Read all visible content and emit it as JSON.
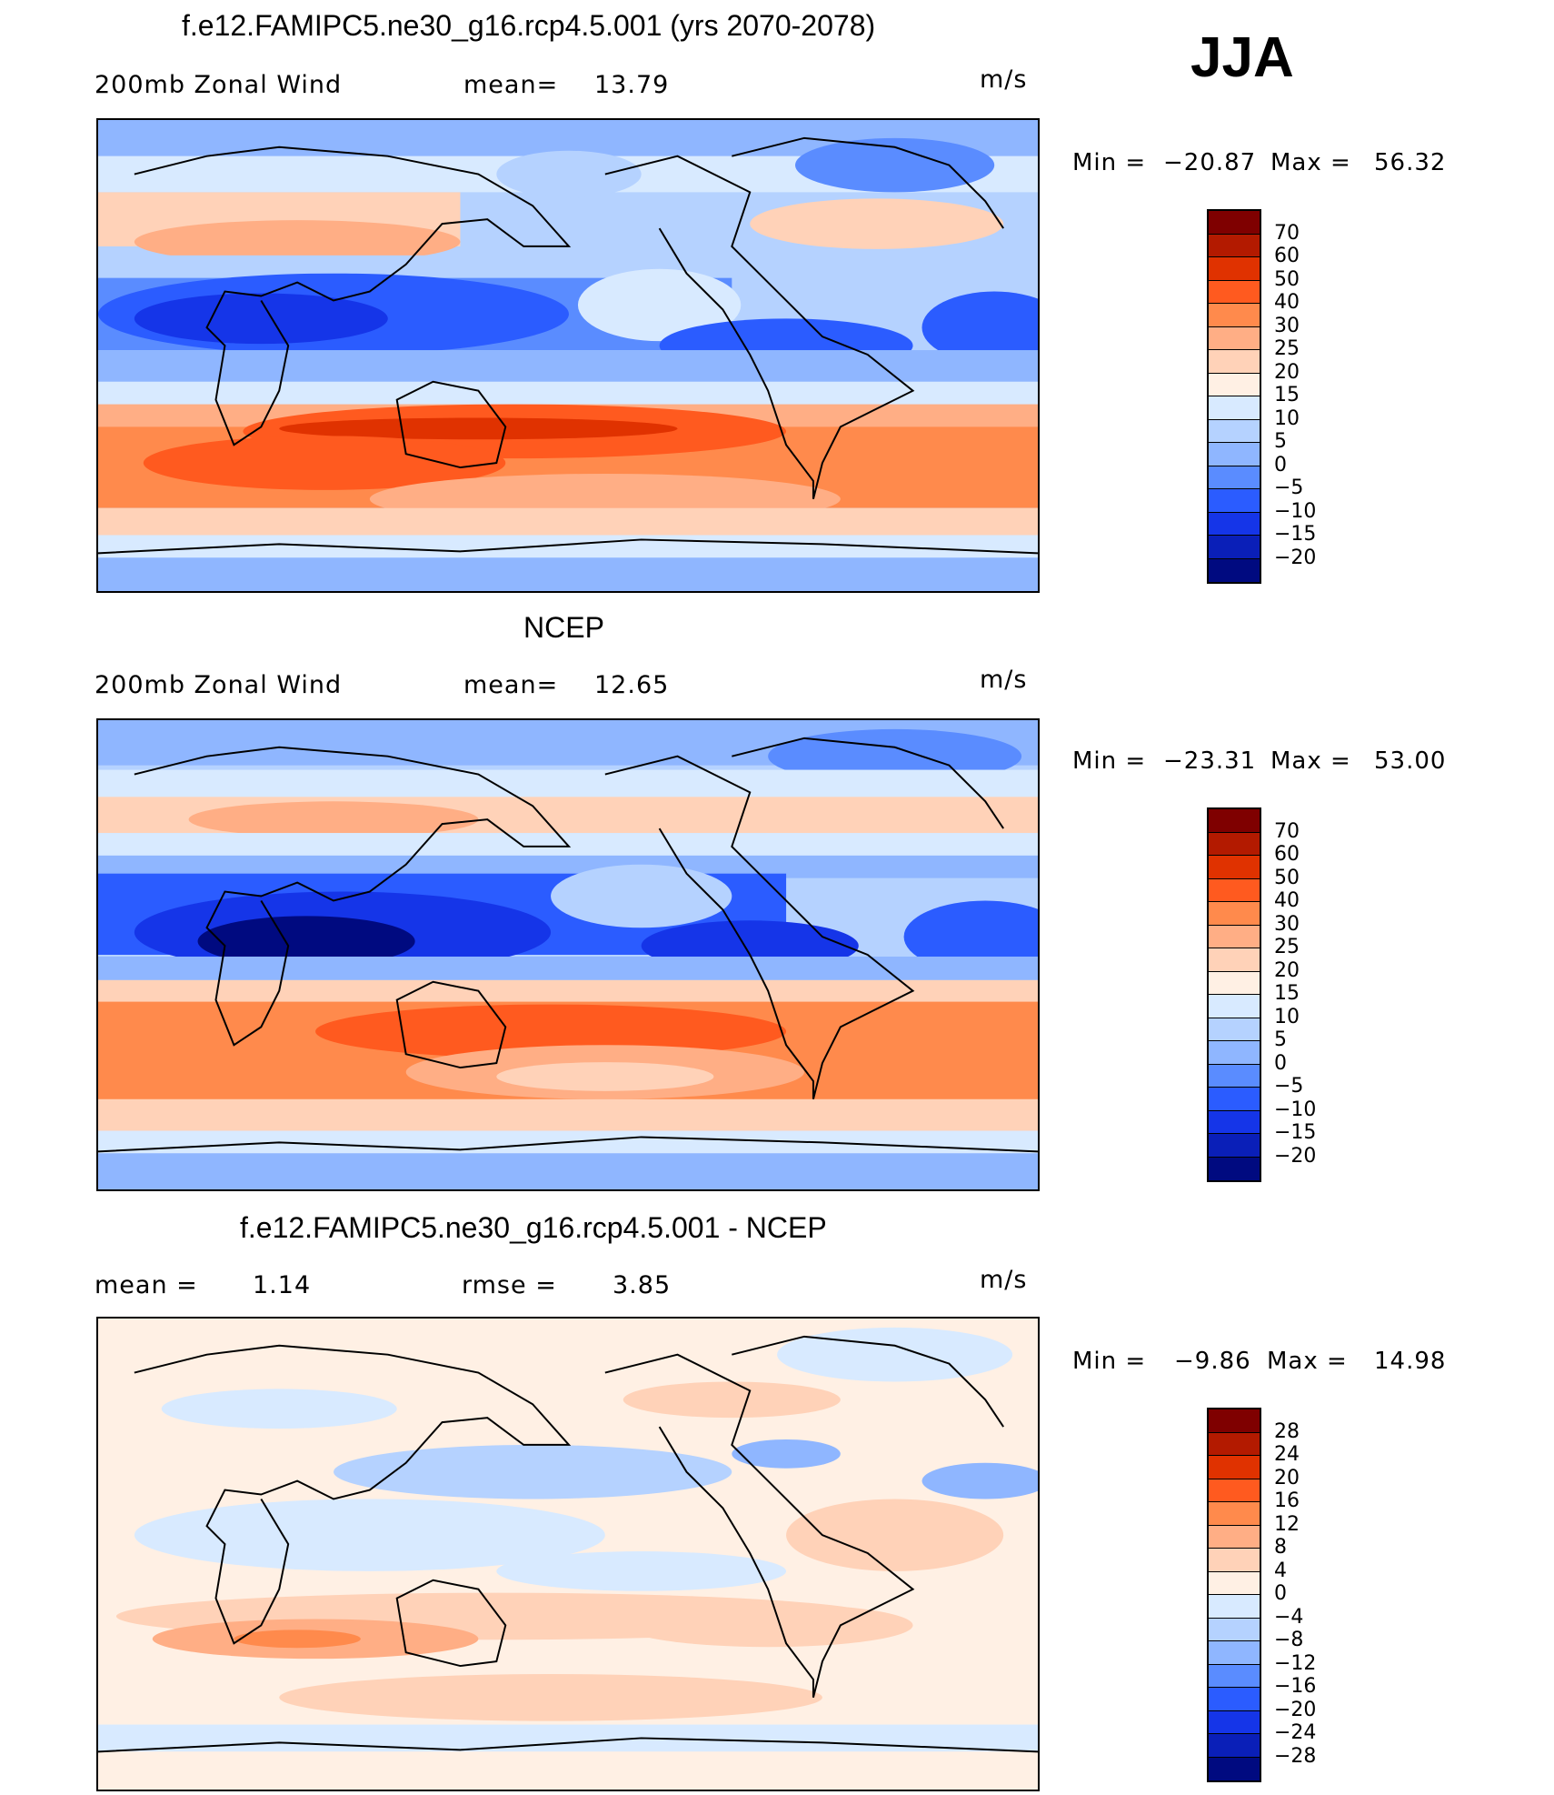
{
  "season": "JJA",
  "panels": [
    {
      "title": "f.e12.FAMIPC5.ne30_g16.rcp4.5.001 (yrs 2070-2078)",
      "left_label": "200mb Zonal Wind",
      "stat1_label": "mean=",
      "stat1_value": "13.79",
      "units": "m/s",
      "min_label": "Min =",
      "min_value": "−20.87",
      "max_label": "Max =",
      "max_value": "56.32",
      "colorbar_labels": [
        "70",
        "60",
        "50",
        "40",
        "30",
        "25",
        "20",
        "15",
        "10",
        "5",
        "0",
        "−5",
        "−10",
        "−15",
        "−20"
      ]
    },
    {
      "title": "NCEP",
      "left_label": "200mb Zonal Wind",
      "stat1_label": "mean=",
      "stat1_value": "12.65",
      "units": "m/s",
      "min_label": "Min =",
      "min_value": "−23.31",
      "max_label": "Max =",
      "max_value": "53.00",
      "colorbar_labels": [
        "70",
        "60",
        "50",
        "40",
        "30",
        "25",
        "20",
        "15",
        "10",
        "5",
        "0",
        "−5",
        "−10",
        "−15",
        "−20"
      ]
    },
    {
      "title": "f.e12.FAMIPC5.ne30_g16.rcp4.5.001 - NCEP",
      "left_label": "mean =",
      "left_value": "1.14",
      "stat1_label": "rmse =",
      "stat1_value": "3.85",
      "units": "m/s",
      "min_label": "Min =",
      "min_value": "−9.86",
      "max_label": "Max =",
      "max_value": "14.98",
      "colorbar_labels": [
        "28",
        "24",
        "20",
        "16",
        "12",
        "8",
        "4",
        "0",
        "−4",
        "−8",
        "−12",
        "−16",
        "−20",
        "−24",
        "−28"
      ]
    }
  ],
  "colors": {
    "scale_top_to_bottom": [
      "#7f0000",
      "#b31a00",
      "#e03200",
      "#ff5a1f",
      "#ff8a4c",
      "#ffae85",
      "#ffd2b8",
      "#fff0e4",
      "#d8eaff",
      "#b5d2ff",
      "#8fb6ff",
      "#5a8cff",
      "#2b5cff",
      "#1535e8",
      "#0a1fb8",
      "#000a80"
    ]
  }
}
